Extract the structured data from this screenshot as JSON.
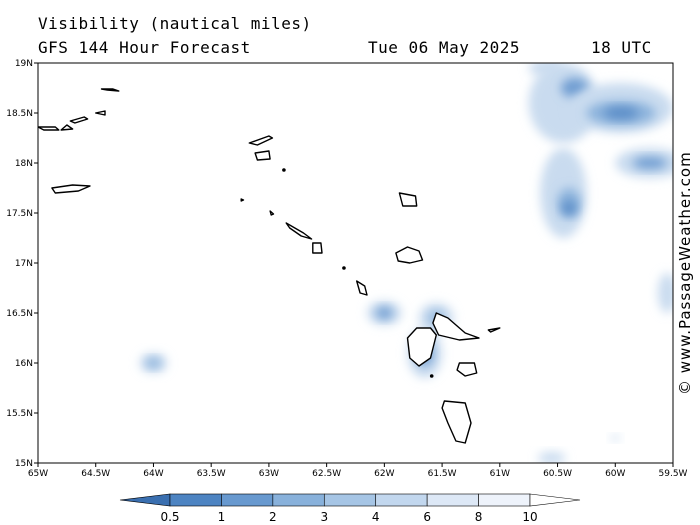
{
  "header": {
    "title": "Visibility (nautical miles)",
    "subtitle": "GFS 144 Hour Forecast",
    "date": "Tue 06 May 2025",
    "time": "18 UTC"
  },
  "map": {
    "lon_range": [
      -65,
      -59.5
    ],
    "lat_range": [
      15,
      19
    ],
    "x_ticks": [
      {
        "lon": -65,
        "label": "65W"
      },
      {
        "lon": -64.5,
        "label": "64.5W"
      },
      {
        "lon": -64,
        "label": "64W"
      },
      {
        "lon": -63.5,
        "label": "63.5W"
      },
      {
        "lon": -63,
        "label": "63W"
      },
      {
        "lon": -62.5,
        "label": "62.5W"
      },
      {
        "lon": -62,
        "label": "62W"
      },
      {
        "lon": -61.5,
        "label": "61.5W"
      },
      {
        "lon": -61,
        "label": "61W"
      },
      {
        "lon": -60.5,
        "label": "60.5W"
      },
      {
        "lon": -60,
        "label": "60W"
      },
      {
        "lon": -59.5,
        "label": "59.5W"
      }
    ],
    "y_ticks": [
      {
        "lat": 19,
        "label": "19N"
      },
      {
        "lat": 18.5,
        "label": "18.5N"
      },
      {
        "lat": 18,
        "label": "18N"
      },
      {
        "lat": 17.5,
        "label": "17.5N"
      },
      {
        "lat": 17,
        "label": "17N"
      },
      {
        "lat": 16.5,
        "label": "16.5N"
      },
      {
        "lat": 16,
        "label": "16N"
      },
      {
        "lat": 15.5,
        "label": "15.5N"
      },
      {
        "lat": 15,
        "label": "15N"
      }
    ],
    "visibility_cells": [
      {
        "lon": -60.6,
        "lat": 18.95,
        "rx": 0.15,
        "ry": 0.08,
        "level": 1
      },
      {
        "lon": -60.45,
        "lat": 18.6,
        "rx": 0.3,
        "ry": 0.4,
        "level": 1
      },
      {
        "lon": -60.35,
        "lat": 18.75,
        "rx": 0.12,
        "ry": 0.1,
        "level": 4
      },
      {
        "lon": -59.95,
        "lat": 18.55,
        "rx": 0.45,
        "ry": 0.25,
        "level": 1
      },
      {
        "lon": -59.95,
        "lat": 18.5,
        "rx": 0.3,
        "ry": 0.12,
        "level": 3
      },
      {
        "lon": -59.95,
        "lat": 18.5,
        "rx": 0.15,
        "ry": 0.06,
        "level": 5
      },
      {
        "lon": -59.7,
        "lat": 18.0,
        "rx": 0.3,
        "ry": 0.15,
        "level": 1
      },
      {
        "lon": -59.7,
        "lat": 18.0,
        "rx": 0.15,
        "ry": 0.06,
        "level": 4
      },
      {
        "lon": -60.45,
        "lat": 17.7,
        "rx": 0.2,
        "ry": 0.45,
        "level": 1
      },
      {
        "lon": -60.4,
        "lat": 17.6,
        "rx": 0.1,
        "ry": 0.15,
        "level": 3
      },
      {
        "lon": -60.4,
        "lat": 17.55,
        "rx": 0.06,
        "ry": 0.07,
        "level": 5
      },
      {
        "lon": -62.0,
        "lat": 16.5,
        "rx": 0.15,
        "ry": 0.12,
        "level": 1
      },
      {
        "lon": -62.0,
        "lat": 16.5,
        "rx": 0.07,
        "ry": 0.06,
        "level": 4
      },
      {
        "lon": -61.55,
        "lat": 16.45,
        "rx": 0.15,
        "ry": 0.15,
        "level": 1
      },
      {
        "lon": -61.55,
        "lat": 16.45,
        "rx": 0.06,
        "ry": 0.07,
        "level": 3
      },
      {
        "lon": -61.65,
        "lat": 16.1,
        "rx": 0.15,
        "ry": 0.25,
        "level": 1
      },
      {
        "lon": -61.65,
        "lat": 16.1,
        "rx": 0.07,
        "ry": 0.13,
        "level": 4
      },
      {
        "lon": -64.0,
        "lat": 16.0,
        "rx": 0.12,
        "ry": 0.1,
        "level": 1
      },
      {
        "lon": -64.0,
        "lat": 16.0,
        "rx": 0.06,
        "ry": 0.05,
        "level": 3
      },
      {
        "lon": -59.55,
        "lat": 16.7,
        "rx": 0.08,
        "ry": 0.2,
        "level": 1
      },
      {
        "lon": -60.55,
        "lat": 15.05,
        "rx": 0.12,
        "ry": 0.06,
        "level": 1
      },
      {
        "lon": -60.0,
        "lat": 15.25,
        "rx": 0.04,
        "ry": 0.03,
        "level": 1
      }
    ],
    "islands": [
      {
        "name": "anegada",
        "pts": [
          [
            -64.45,
            18.74
          ],
          [
            -64.35,
            18.74
          ],
          [
            -64.3,
            18.72
          ],
          [
            -64.4,
            18.73
          ]
        ]
      },
      {
        "name": "tortola",
        "pts": [
          [
            -64.72,
            18.42
          ],
          [
            -64.6,
            18.46
          ],
          [
            -64.57,
            18.44
          ],
          [
            -64.68,
            18.4
          ]
        ]
      },
      {
        "name": "virgin-gorda",
        "pts": [
          [
            -64.5,
            18.5
          ],
          [
            -64.42,
            18.52
          ],
          [
            -64.42,
            18.48
          ]
        ]
      },
      {
        "name": "st-thomas",
        "pts": [
          [
            -65.0,
            18.36
          ],
          [
            -64.85,
            18.36
          ],
          [
            -64.82,
            18.33
          ],
          [
            -64.95,
            18.33
          ]
        ]
      },
      {
        "name": "st-john",
        "pts": [
          [
            -64.8,
            18.33
          ],
          [
            -64.75,
            18.38
          ],
          [
            -64.7,
            18.34
          ]
        ]
      },
      {
        "name": "st-croix",
        "pts": [
          [
            -64.88,
            17.75
          ],
          [
            -64.7,
            17.78
          ],
          [
            -64.55,
            17.77
          ],
          [
            -64.65,
            17.72
          ],
          [
            -64.85,
            17.7
          ]
        ]
      },
      {
        "name": "anguilla",
        "pts": [
          [
            -63.17,
            18.2
          ],
          [
            -63.0,
            18.27
          ],
          [
            -62.97,
            18.25
          ],
          [
            -63.1,
            18.18
          ]
        ]
      },
      {
        "name": "st-martin",
        "pts": [
          [
            -63.12,
            18.1
          ],
          [
            -63.0,
            18.12
          ],
          [
            -62.99,
            18.04
          ],
          [
            -63.1,
            18.03
          ]
        ]
      },
      {
        "name": "st-barths",
        "pts": [
          [
            -62.87,
            17.93
          ],
          [
            -62.8,
            17.9
          ]
        ]
      },
      {
        "name": "saba",
        "pts": [
          [
            -63.24,
            17.64
          ],
          [
            -63.22,
            17.63
          ],
          [
            -63.24,
            17.62
          ]
        ]
      },
      {
        "name": "st-eustatius",
        "pts": [
          [
            -62.99,
            17.52
          ],
          [
            -62.96,
            17.49
          ],
          [
            -62.98,
            17.48
          ]
        ]
      },
      {
        "name": "st-kitts",
        "pts": [
          [
            -62.85,
            17.4
          ],
          [
            -62.7,
            17.3
          ],
          [
            -62.63,
            17.24
          ],
          [
            -62.72,
            17.27
          ],
          [
            -62.82,
            17.35
          ]
        ]
      },
      {
        "name": "nevis",
        "pts": [
          [
            -62.62,
            17.2
          ],
          [
            -62.55,
            17.2
          ],
          [
            -62.54,
            17.1
          ],
          [
            -62.62,
            17.1
          ]
        ]
      },
      {
        "name": "barbuda",
        "pts": [
          [
            -61.87,
            17.7
          ],
          [
            -61.73,
            17.67
          ],
          [
            -61.72,
            17.57
          ],
          [
            -61.84,
            17.57
          ],
          [
            -61.87,
            17.7
          ]
        ]
      },
      {
        "name": "antigua",
        "pts": [
          [
            -61.9,
            17.1
          ],
          [
            -61.8,
            17.16
          ],
          [
            -61.7,
            17.12
          ],
          [
            -61.67,
            17.03
          ],
          [
            -61.78,
            17.0
          ],
          [
            -61.88,
            17.02
          ]
        ]
      },
      {
        "name": "redonda",
        "pts": [
          [
            -62.35,
            16.95
          ],
          [
            -62.34,
            16.94
          ]
        ]
      },
      {
        "name": "montserrat",
        "pts": [
          [
            -62.24,
            16.82
          ],
          [
            -62.17,
            16.77
          ],
          [
            -62.15,
            16.68
          ],
          [
            -62.21,
            16.7
          ]
        ]
      },
      {
        "name": "guadeloupe-basse-terre",
        "pts": [
          [
            -61.72,
            16.35
          ],
          [
            -61.6,
            16.35
          ],
          [
            -61.55,
            16.28
          ],
          [
            -61.6,
            16.05
          ],
          [
            -61.7,
            15.97
          ],
          [
            -61.78,
            16.05
          ],
          [
            -61.8,
            16.25
          ]
        ]
      },
      {
        "name": "guadeloupe-grande-terre",
        "pts": [
          [
            -61.55,
            16.5
          ],
          [
            -61.45,
            16.45
          ],
          [
            -61.3,
            16.3
          ],
          [
            -61.18,
            16.25
          ],
          [
            -61.35,
            16.23
          ],
          [
            -61.53,
            16.28
          ],
          [
            -61.58,
            16.4
          ]
        ]
      },
      {
        "name": "la-desirade",
        "pts": [
          [
            -61.1,
            16.33
          ],
          [
            -61.0,
            16.35
          ],
          [
            -61.08,
            16.31
          ]
        ]
      },
      {
        "name": "marie-galante",
        "pts": [
          [
            -61.35,
            16.0
          ],
          [
            -61.22,
            16.0
          ],
          [
            -61.2,
            15.9
          ],
          [
            -61.3,
            15.87
          ],
          [
            -61.37,
            15.93
          ]
        ]
      },
      {
        "name": "les-saintes",
        "pts": [
          [
            -61.59,
            15.87
          ],
          [
            -61.57,
            15.85
          ]
        ]
      },
      {
        "name": "dominica",
        "pts": [
          [
            -61.48,
            15.62
          ],
          [
            -61.3,
            15.6
          ],
          [
            -61.25,
            15.4
          ],
          [
            -61.3,
            15.2
          ],
          [
            -61.38,
            15.22
          ],
          [
            -61.45,
            15.4
          ],
          [
            -61.5,
            15.55
          ]
        ]
      }
    ]
  },
  "colorbar": {
    "labels": [
      "0.5",
      "1",
      "2",
      "3",
      "4",
      "6",
      "8",
      "10"
    ],
    "colors": [
      "#3a6fb0",
      "#4d84c2",
      "#6899cf",
      "#88b1db",
      "#a6c5e5",
      "#c2d7ee",
      "#dde8f6",
      "#eef3fb",
      "#ffffff"
    ]
  },
  "watermark": "© www.PassageWeather.com"
}
